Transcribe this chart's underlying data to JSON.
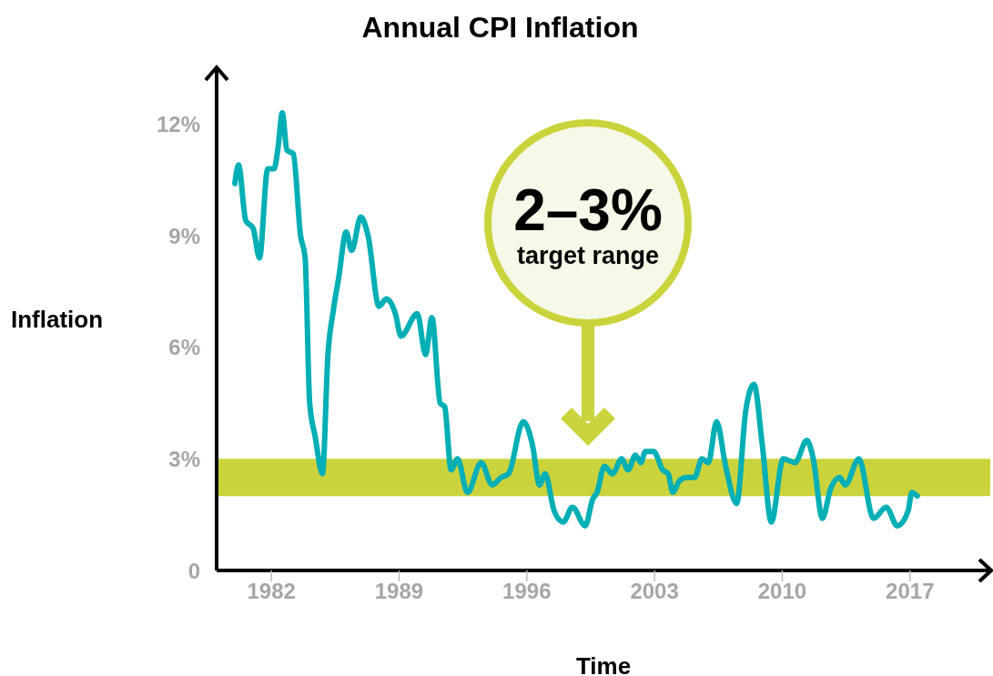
{
  "chart_data": {
    "type": "line",
    "title": "Annual CPI Inflation",
    "xlabel": "Time",
    "ylabel": "Inflation",
    "color": "#00afb5",
    "x": [
      1980.0,
      1980.2,
      1980.6,
      1981.0,
      1981.35,
      1981.8,
      1982.15,
      1982.35,
      1982.6,
      1982.85,
      1983.2,
      1983.6,
      1983.85,
      1984.1,
      1984.4,
      1984.8,
      1985.1,
      1985.4,
      1985.7,
      1986.1,
      1986.4,
      1986.9,
      1987.3,
      1987.9,
      1988.3,
      1988.8,
      1989.1,
      1990.0,
      1990.45,
      1990.8,
      1991.25,
      1991.5,
      1991.85,
      1992.2,
      1992.75,
      1993.5,
      1994.1,
      1994.6,
      1995.0,
      1995.8,
      1996.3,
      1996.7,
      1997.0,
      1997.5,
      1998.0,
      1998.5,
      1999.2,
      1999.6,
      1999.85,
      2000.25,
      2000.7,
      2001.2,
      2001.55,
      2001.95,
      2002.25,
      2002.5,
      2002.95,
      2003.45,
      2003.75,
      2004.0,
      2004.35,
      2004.75,
      2005.2,
      2005.6,
      2005.95,
      2006.4,
      2006.9,
      2007.5,
      2008.0,
      2008.45,
      2008.9,
      2009.4,
      2010.05,
      2010.7,
      2011.35,
      2011.7,
      2012.2,
      2012.65,
      2013.15,
      2013.45,
      2014.2,
      2015.0,
      2015.7,
      2016.3,
      2016.9,
      2017.1,
      2017.4
    ],
    "values": [
      10.4,
      10.9,
      9.4,
      9.2,
      8.4,
      10.8,
      10.8,
      11.3,
      12.3,
      11.3,
      11.2,
      9.0,
      8.4,
      4.5,
      3.6,
      2.6,
      5.8,
      7.0,
      7.9,
      9.1,
      8.6,
      9.5,
      9.0,
      7.1,
      7.3,
      6.9,
      6.3,
      6.9,
      5.8,
      6.8,
      4.5,
      4.4,
      2.7,
      3.0,
      2.1,
      2.9,
      2.3,
      2.5,
      2.6,
      4.0,
      3.4,
      2.3,
      2.6,
      1.6,
      1.3,
      1.7,
      1.2,
      1.9,
      2.1,
      2.8,
      2.6,
      3.0,
      2.7,
      3.1,
      2.9,
      3.2,
      3.2,
      2.7,
      2.6,
      2.1,
      2.4,
      2.5,
      2.5,
      3.0,
      2.9,
      4.0,
      2.8,
      1.8,
      4.3,
      5.0,
      3.4,
      1.3,
      3.0,
      2.9,
      3.5,
      3.0,
      1.4,
      2.2,
      2.5,
      2.3,
      3.0,
      1.4,
      1.7,
      1.2,
      1.6,
      2.1,
      2.0
    ],
    "xlim": [
      1979,
      2021.4
    ],
    "xticks": [
      1982,
      1989,
      1996,
      2003,
      2010,
      2017
    ],
    "ylim": [
      0,
      13.5
    ],
    "yticks": [
      0,
      {
        "value": 3,
        "label": "3%"
      },
      {
        "value": 6,
        "label": "6%"
      },
      {
        "value": 9,
        "label": "9%"
      },
      {
        "value": 12,
        "label": "12%"
      }
    ],
    "bands": [
      {
        "axis": "y",
        "from": 2,
        "to": 3,
        "color": "#cbd33c"
      }
    ],
    "annotations": [
      "2–3%",
      "target range"
    ]
  }
}
